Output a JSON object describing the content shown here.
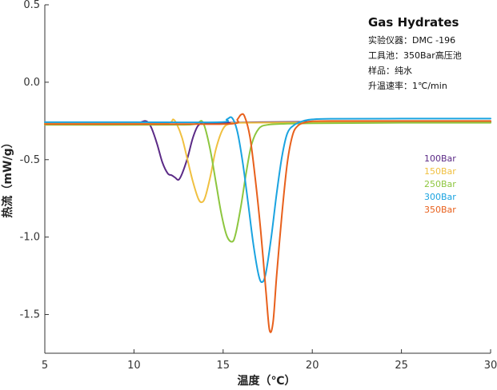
{
  "chart_data": {
    "type": "line",
    "title": "",
    "xlabel": "温度（℃）",
    "ylabel": "热流（mW/g）",
    "xlim": [
      5,
      30
    ],
    "ylim": [
      -1.75,
      0.5
    ],
    "xticks": [
      5,
      10,
      15,
      20,
      25,
      30
    ],
    "xtick_labels": [
      "5",
      "10",
      "15",
      "20",
      "25",
      "30"
    ],
    "yticks": [
      0.5,
      0.0,
      -0.5,
      -1.0,
      -1.5
    ],
    "ytick_labels": [
      "0.5",
      "0.0",
      "-0.5",
      "-1.0",
      "-1.5"
    ],
    "grid": false,
    "legend_position": "right-middle",
    "annotations": {
      "title": "Gas Hydrates",
      "lines": [
        "实验仪器：DMC -196",
        "工具池：350Bar高压池",
        "样品：纯水",
        "升温速率：1℃/min"
      ]
    },
    "series": [
      {
        "name": "100Bar",
        "color": "#5b2a86",
        "x": [
          5,
          10,
          10.3,
          10.6,
          10.8,
          11.0,
          11.3,
          11.6,
          11.9,
          12.1,
          12.3,
          12.5,
          12.7,
          13.0,
          13.3,
          13.6,
          14.0,
          15,
          17,
          20,
          25,
          30
        ],
        "y": [
          -0.262,
          -0.262,
          -0.262,
          -0.25,
          -0.26,
          -0.3,
          -0.4,
          -0.52,
          -0.59,
          -0.6,
          -0.615,
          -0.63,
          -0.59,
          -0.49,
          -0.36,
          -0.28,
          -0.265,
          -0.262,
          -0.258,
          -0.255,
          -0.255,
          -0.255
        ]
      },
      {
        "name": "150Bar",
        "color": "#f0c040",
        "x": [
          5,
          11,
          12.0,
          12.2,
          12.4,
          12.7,
          13.0,
          13.3,
          13.6,
          13.8,
          14.0,
          14.3,
          14.6,
          15.0,
          15.4,
          16,
          20,
          25,
          30
        ],
        "y": [
          -0.265,
          -0.265,
          -0.26,
          -0.24,
          -0.27,
          -0.36,
          -0.5,
          -0.64,
          -0.75,
          -0.775,
          -0.74,
          -0.6,
          -0.43,
          -0.3,
          -0.268,
          -0.262,
          -0.26,
          -0.26,
          -0.26
        ]
      },
      {
        "name": "250Bar",
        "color": "#8dc63f",
        "x": [
          5,
          12,
          13.3,
          13.6,
          13.8,
          14.0,
          14.3,
          14.6,
          14.9,
          15.2,
          15.5,
          15.7,
          16.0,
          16.3,
          16.6,
          17.0,
          17.5,
          18.5,
          20,
          25,
          30
        ],
        "y": [
          -0.275,
          -0.275,
          -0.272,
          -0.262,
          -0.25,
          -0.3,
          -0.45,
          -0.65,
          -0.85,
          -0.99,
          -1.03,
          -0.98,
          -0.8,
          -0.58,
          -0.4,
          -0.3,
          -0.275,
          -0.268,
          -0.265,
          -0.262,
          -0.262
        ]
      },
      {
        "name": "300Bar",
        "color": "#1aa3e0",
        "x": [
          5,
          10,
          14.8,
          15.2,
          15.5,
          15.8,
          16.1,
          16.4,
          16.7,
          17.0,
          17.2,
          17.4,
          17.7,
          18.0,
          18.3,
          18.6,
          19.0,
          19.5,
          20,
          21,
          25,
          30
        ],
        "y": [
          -0.258,
          -0.258,
          -0.258,
          -0.24,
          -0.23,
          -0.32,
          -0.52,
          -0.78,
          -1.05,
          -1.25,
          -1.29,
          -1.23,
          -1.0,
          -0.72,
          -0.48,
          -0.33,
          -0.275,
          -0.25,
          -0.24,
          -0.236,
          -0.235,
          -0.235
        ]
      },
      {
        "name": "350Bar",
        "color": "#e8601c",
        "x": [
          5,
          12,
          15.5,
          15.8,
          16.0,
          16.2,
          16.5,
          16.8,
          17.1,
          17.4,
          17.6,
          17.8,
          18.0,
          18.3,
          18.6,
          18.9,
          19.2,
          19.6,
          20,
          21,
          25,
          30
        ],
        "y": [
          -0.27,
          -0.27,
          -0.268,
          -0.24,
          -0.21,
          -0.22,
          -0.35,
          -0.62,
          -0.95,
          -1.35,
          -1.6,
          -1.55,
          -1.25,
          -0.85,
          -0.52,
          -0.34,
          -0.28,
          -0.26,
          -0.252,
          -0.25,
          -0.25,
          -0.25
        ]
      }
    ]
  }
}
